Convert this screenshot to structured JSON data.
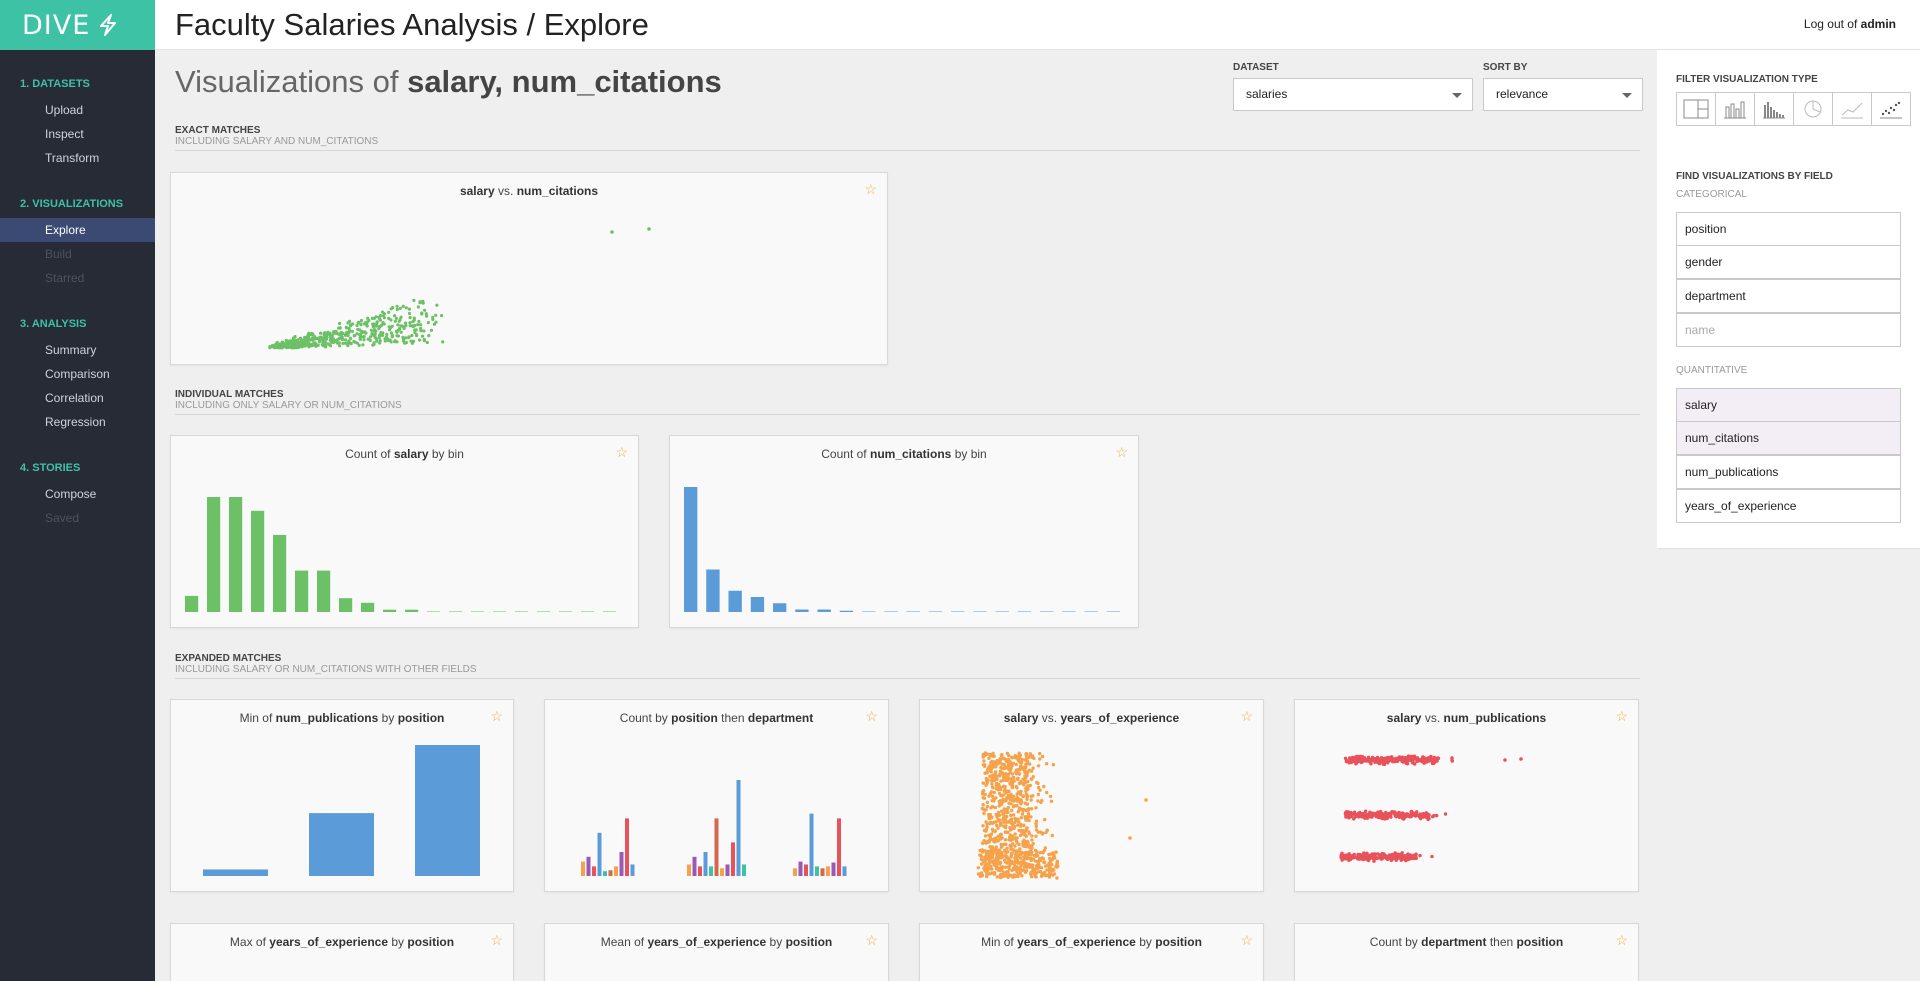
{
  "app": {
    "logo": "DIVE",
    "title": "Faculty Salaries Analysis / Explore",
    "logout_prefix": "Log out of",
    "user": "admin"
  },
  "sidebar": {
    "sections": [
      {
        "title": "1. DATASETS",
        "items": [
          {
            "label": "Upload",
            "state": "normal"
          },
          {
            "label": "Inspect",
            "state": "normal"
          },
          {
            "label": "Transform",
            "state": "normal"
          }
        ]
      },
      {
        "title": "2. VISUALIZATIONS",
        "items": [
          {
            "label": "Explore",
            "state": "active"
          },
          {
            "label": "Build",
            "state": "disabled"
          },
          {
            "label": "Starred",
            "state": "disabled"
          }
        ]
      },
      {
        "title": "3. ANALYSIS",
        "items": [
          {
            "label": "Summary",
            "state": "normal"
          },
          {
            "label": "Comparison",
            "state": "normal"
          },
          {
            "label": "Correlation",
            "state": "normal"
          },
          {
            "label": "Regression",
            "state": "normal"
          }
        ]
      },
      {
        "title": "4. STORIES",
        "items": [
          {
            "label": "Compose",
            "state": "normal"
          },
          {
            "label": "Saved",
            "state": "disabled"
          }
        ]
      }
    ]
  },
  "header": {
    "prefix": "Visualizations of",
    "fields": "salary, num_citations"
  },
  "controls": {
    "dataset_label": "DATASET",
    "dataset_value": "salaries",
    "sort_label": "SORT BY",
    "sort_value": "relevance"
  },
  "sections": {
    "exact": {
      "title": "EXACT MATCHES",
      "subtitle": "INCLUDING SALARY AND NUM_CITATIONS"
    },
    "individual": {
      "title": "INDIVIDUAL MATCHES",
      "subtitle": "INCLUDING ONLY SALARY OR NUM_CITATIONS"
    },
    "expanded": {
      "title": "EXPANDED MATCHES",
      "subtitle": "INCLUDING SALARY OR NUM_CITATIONS WITH OTHER FIELDS"
    }
  },
  "cards": {
    "c1": {
      "a": "salary",
      "mid": "vs.",
      "b": "num_citations"
    },
    "c2": {
      "pre": "Count of",
      "a": "salary",
      "post": "by bin"
    },
    "c3": {
      "pre": "Count of",
      "a": "num_citations",
      "post": "by bin"
    },
    "c4": {
      "pre": "Min of",
      "a": "num_publications",
      "mid": "by",
      "b": "position"
    },
    "c5": {
      "pre": "Count by",
      "a": "position",
      "mid": "then",
      "b": "department"
    },
    "c6": {
      "a": "salary",
      "mid": "vs.",
      "b": "years_of_experience"
    },
    "c7": {
      "a": "salary",
      "mid": "vs.",
      "b": "num_publications"
    },
    "c8": {
      "pre": "Max of",
      "a": "years_of_experience",
      "mid": "by",
      "b": "position"
    },
    "c9": {
      "pre": "Mean of",
      "a": "years_of_experience",
      "mid": "by",
      "b": "position"
    },
    "c10": {
      "pre": "Min of",
      "a": "years_of_experience",
      "mid": "by",
      "b": "position"
    },
    "c11": {
      "pre": "Count by",
      "a": "department",
      "mid": "then",
      "b": "position"
    }
  },
  "chart_data": [
    {
      "type": "scatter",
      "series": [
        {
          "color": "#6cc066",
          "note": "dense cluster rising to the right plus two outliers"
        }
      ]
    },
    {
      "type": "bar",
      "values": [
        0.14,
        1.0,
        1.0,
        0.88,
        0.67,
        0.36,
        0.36,
        0.12,
        0.08,
        0.02,
        0.02,
        0,
        0,
        0,
        0,
        0,
        0,
        0,
        0,
        0
      ],
      "color": "#6cc066"
    },
    {
      "type": "bar",
      "values": [
        1.0,
        0.34,
        0.17,
        0.12,
        0.07,
        0.02,
        0.02,
        0.01,
        0,
        0,
        0,
        0,
        0,
        0,
        0,
        0,
        0,
        0,
        0,
        0
      ],
      "color": "#5a9bd8"
    },
    {
      "type": "bar",
      "values": [
        0.05,
        0.48,
        1.0
      ],
      "color": "#5a9bd8"
    },
    {
      "type": "bar",
      "groups": [
        [
          0.15,
          0.2,
          0.1,
          0.45,
          0.05,
          0.06,
          0.1,
          0.25,
          0.6,
          0.12
        ],
        [
          0.12,
          0.2,
          0.1,
          0.25,
          0.1,
          0.6,
          0.08,
          0.12,
          0.35,
          1.0,
          0.12
        ],
        [
          0.08,
          0.15,
          0.12,
          0.65,
          0.1,
          0.08,
          0.1,
          0.14,
          0.6,
          0.1
        ]
      ],
      "colors": [
        "#f5a24b",
        "#9b59b6",
        "#e8525a",
        "#5a9bd8",
        "#3ec2a6",
        "#d4694a"
      ]
    },
    {
      "type": "scatter",
      "series": [
        {
          "color": "#f5a24b"
        }
      ]
    },
    {
      "type": "scatter",
      "series": [
        {
          "color": "#e8525a"
        }
      ]
    }
  ],
  "right": {
    "filter_title": "FILTER VISUALIZATION TYPE",
    "vt_icons": [
      "treemap-icon",
      "bar-chart-icon",
      "histogram-icon",
      "pie-chart-icon",
      "line-chart-icon",
      "scatter-icon"
    ],
    "field_title": "FIND VISUALIZATIONS BY FIELD",
    "categorical_label": "CATEGORICAL",
    "categorical": [
      {
        "label": "position"
      },
      {
        "label": "gender"
      },
      {
        "label": "department"
      },
      {
        "label": "name"
      }
    ],
    "quantitative_label": "QUANTITATIVE",
    "quantitative": [
      {
        "label": "salary"
      },
      {
        "label": "num_citations"
      },
      {
        "label": "num_publications"
      },
      {
        "label": "years_of_experience"
      }
    ]
  }
}
